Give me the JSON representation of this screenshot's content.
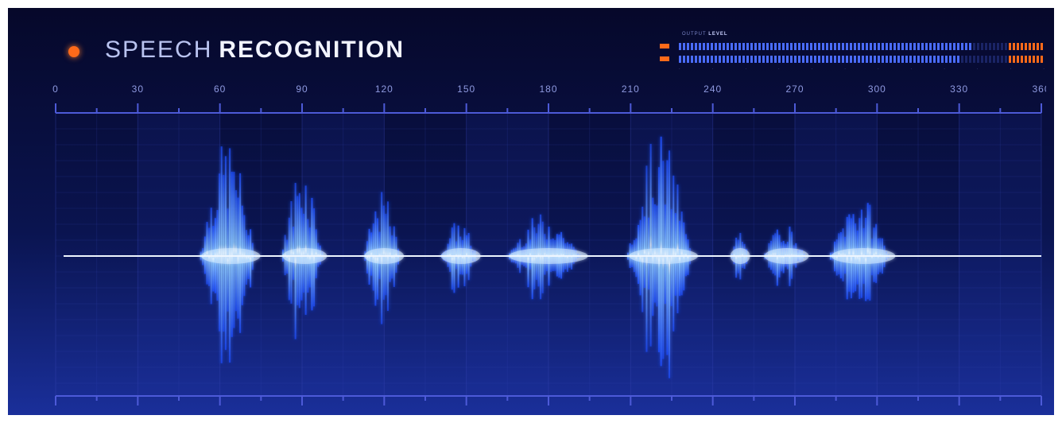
{
  "header": {
    "title_light": "SPEECH",
    "title_bold": "RECOGNITION"
  },
  "output_meter": {
    "label_a": "OUTPUT",
    "label_b": "LEVEL",
    "channels": [
      {
        "level": 0.8
      },
      {
        "level": 0.77
      }
    ],
    "peak_color": "#ff6a1a",
    "bar_color": "#4a6cff",
    "tick_count": 12
  },
  "scale": {
    "top_ticks": [
      "0",
      "30",
      "60",
      "90",
      "120",
      "150",
      "180",
      "210",
      "240",
      "270",
      "300",
      "330",
      "360"
    ],
    "bottom_ticks": [
      "0",
      "30",
      "60",
      "90",
      "120",
      "150",
      "180",
      "210",
      "240",
      "270",
      "300",
      "330",
      "360"
    ]
  },
  "colors": {
    "accent": "#ff6a1a",
    "wave": "#4f8dff",
    "wave_highlight": "#d8ecff",
    "ruler": "#4d5ad8"
  },
  "waveform": {
    "bursts": [
      {
        "start": 52,
        "end": 76,
        "peak": 0.95
      },
      {
        "start": 82,
        "end": 100,
        "peak": 0.78
      },
      {
        "start": 112,
        "end": 128,
        "peak": 0.52
      },
      {
        "start": 140,
        "end": 156,
        "peak": 0.3
      },
      {
        "start": 164,
        "end": 196,
        "peak": 0.35
      },
      {
        "start": 208,
        "end": 236,
        "peak": 1.0
      },
      {
        "start": 246,
        "end": 254,
        "peak": 0.2
      },
      {
        "start": 258,
        "end": 276,
        "peak": 0.28
      },
      {
        "start": 282,
        "end": 308,
        "peak": 0.5
      }
    ]
  }
}
